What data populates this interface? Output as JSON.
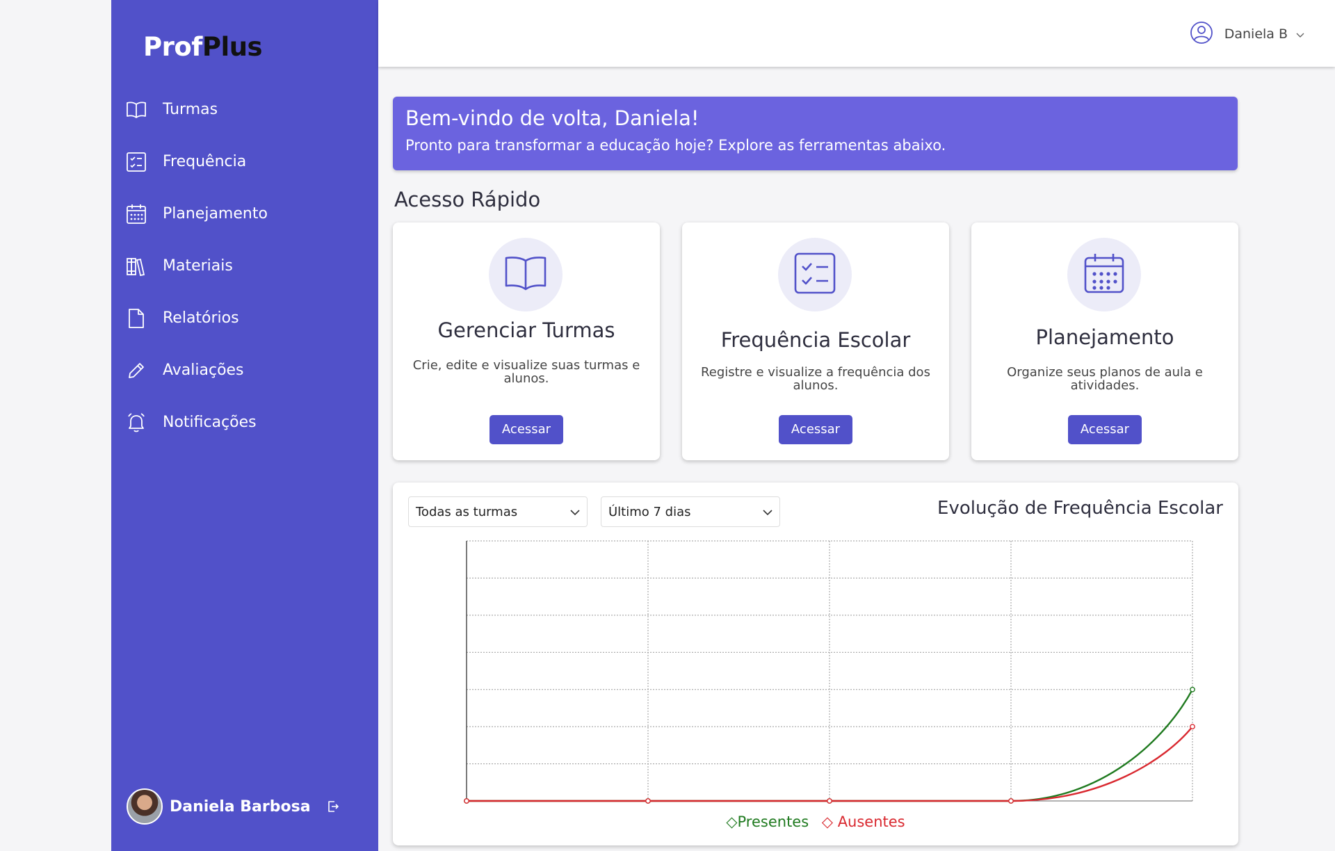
{
  "brand": {
    "part1": "Prof",
    "part2": "Plus"
  },
  "sidebar": {
    "items": [
      {
        "label": "Turmas",
        "icon": "book-open-icon"
      },
      {
        "label": "Frequência",
        "icon": "checklist-icon"
      },
      {
        "label": "Planejamento",
        "icon": "calendar-icon"
      },
      {
        "label": "Materiais",
        "icon": "library-icon"
      },
      {
        "label": "Relatórios",
        "icon": "file-icon"
      },
      {
        "label": "Avaliações",
        "icon": "pencil-icon"
      },
      {
        "label": "Notificações",
        "icon": "bell-icon"
      }
    ],
    "user_name": "Daniela Barbosa"
  },
  "topbar": {
    "user_label": "Daniela B"
  },
  "welcome": {
    "title": "Bem-vindo de volta, Daniela!",
    "subtitle": "Pronto para transformar a educação hoje? Explore as ferramentas abaixo."
  },
  "quick_access": {
    "title": "Acesso Rápido",
    "cards": [
      {
        "title": "Gerenciar Turmas",
        "description": "Crie, edite e visualize suas turmas e alunos.",
        "button": "Acessar",
        "icon": "book-open-icon"
      },
      {
        "title": "Frequência Escolar",
        "description": "Registre e visualize a frequência dos alunos.",
        "button": "Acessar",
        "icon": "checklist-icon"
      },
      {
        "title": "Planejamento",
        "description": "Organize seus planos de aula e atividades.",
        "button": "Acessar",
        "icon": "calendar-icon"
      }
    ]
  },
  "chart_panel": {
    "filter_class": "Todas as turmas",
    "filter_period": "Último 7 dias",
    "title": "Evolução de Frequência Escolar"
  },
  "colors": {
    "primary": "#5151c9",
    "welcome_bg": "#6b63df",
    "presentes": "#1f7a1f",
    "ausentes": "#d9282f"
  },
  "chart_data": {
    "type": "line",
    "x": [
      0,
      1,
      2,
      3,
      4
    ],
    "ylim": [
      0,
      7
    ],
    "grid": true,
    "legend_position": "bottom",
    "series": [
      {
        "name": "Presentes",
        "color": "#1f7a1f",
        "values": [
          0,
          0,
          0,
          0,
          3
        ]
      },
      {
        "name": "Ausentes",
        "color": "#d9282f",
        "values": [
          0,
          0,
          0,
          0,
          2
        ]
      }
    ]
  }
}
